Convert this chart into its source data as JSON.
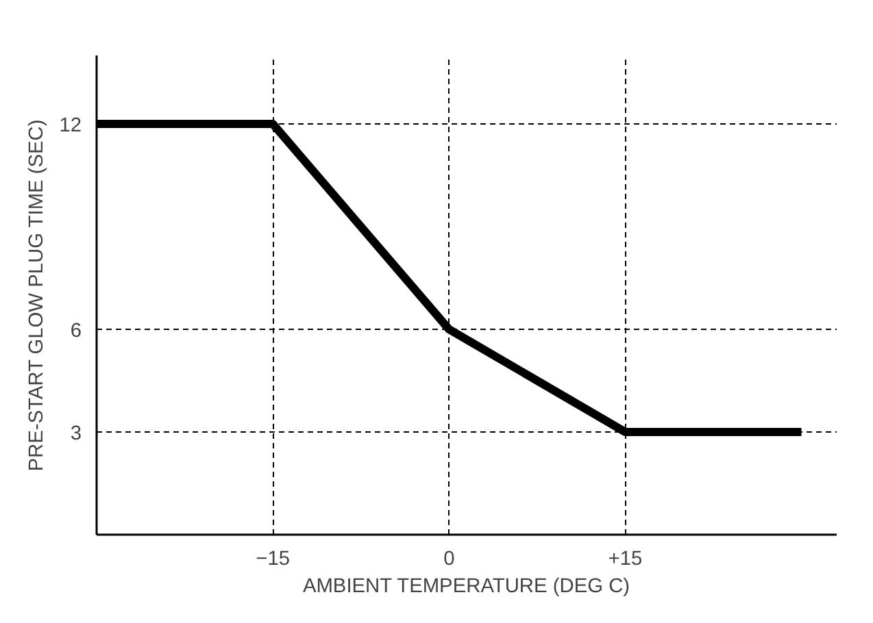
{
  "chart_data": {
    "type": "line",
    "xlabel": "AMBIENT TEMPERATURE (DEG C)",
    "ylabel": "PRE-START GLOW PLUG TIME (SEC)",
    "x": [
      -30,
      -15,
      0,
      15,
      30
    ],
    "series": [
      {
        "color": "#000000",
        "values": [
          12,
          12,
          6,
          3,
          3
        ]
      }
    ],
    "xlim": [
      -30,
      33
    ],
    "ylim": [
      0,
      14
    ],
    "xticks": [
      -15,
      0,
      {
        "value": 15,
        "label": "+15"
      }
    ],
    "yticks": [
      3,
      6,
      12
    ],
    "grid": true,
    "line_style": "solid",
    "marker": "none"
  }
}
